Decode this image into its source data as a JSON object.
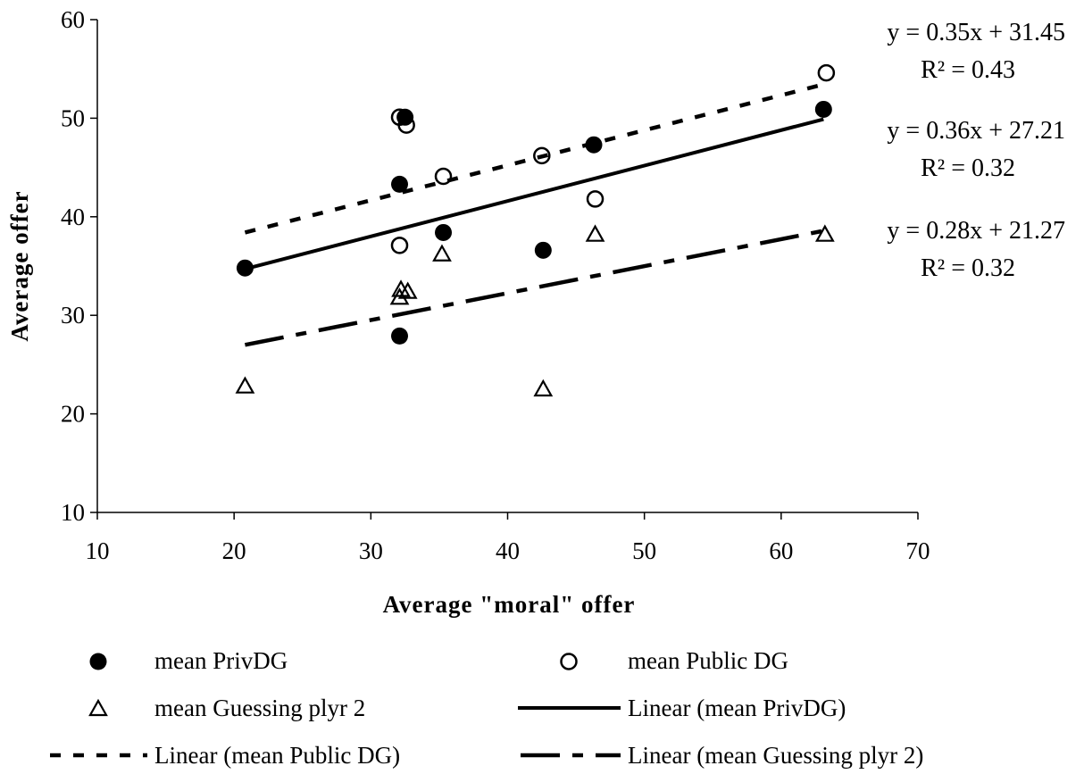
{
  "chart_data": {
    "type": "scatter",
    "xlabel": "Average \"moral\" offer",
    "ylabel": "Average  offer",
    "xlim": [
      10,
      70
    ],
    "ylim": [
      10,
      60
    ],
    "xticks": [
      "10",
      "20",
      "30",
      "40",
      "50",
      "60",
      "70"
    ],
    "yticks": [
      "10",
      "20",
      "30",
      "40",
      "50",
      "60"
    ],
    "grid": false,
    "legend_position": "bottom",
    "series": [
      {
        "name": "mean PrivDG",
        "marker": "filled-circle",
        "points": [
          {
            "x": 20.8,
            "y": 34.8
          },
          {
            "x": 32.1,
            "y": 43.3
          },
          {
            "x": 32.5,
            "y": 50.1
          },
          {
            "x": 32.1,
            "y": 27.9
          },
          {
            "x": 35.3,
            "y": 38.4
          },
          {
            "x": 42.6,
            "y": 36.6
          },
          {
            "x": 46.3,
            "y": 47.3
          },
          {
            "x": 63.1,
            "y": 50.9
          }
        ]
      },
      {
        "name": "mean Public DG",
        "marker": "open-circle",
        "points": [
          {
            "x": 32.1,
            "y": 50.1
          },
          {
            "x": 32.6,
            "y": 49.3
          },
          {
            "x": 32.1,
            "y": 37.1
          },
          {
            "x": 35.3,
            "y": 44.1
          },
          {
            "x": 42.5,
            "y": 46.2
          },
          {
            "x": 46.4,
            "y": 41.8
          },
          {
            "x": 63.3,
            "y": 54.6
          }
        ]
      },
      {
        "name": "mean Guessing plyr 2",
        "marker": "open-triangle",
        "points": [
          {
            "x": 20.8,
            "y": 22.8
          },
          {
            "x": 32.1,
            "y": 31.8
          },
          {
            "x": 32.2,
            "y": 32.6
          },
          {
            "x": 32.7,
            "y": 32.4
          },
          {
            "x": 35.2,
            "y": 36.2
          },
          {
            "x": 42.6,
            "y": 22.5
          },
          {
            "x": 46.4,
            "y": 38.2
          },
          {
            "x": 63.2,
            "y": 38.2
          }
        ]
      }
    ],
    "trendlines": [
      {
        "name": "Linear (mean PrivDG)",
        "style": "solid",
        "x_range": [
          20.8,
          63.1
        ],
        "start_y": 34.7,
        "end_y": 49.9,
        "equation": "y = 0.36x + 27.21",
        "r2": "R² = 0.32"
      },
      {
        "name": "Linear (mean Public DG)",
        "style": "dotted",
        "x_range": [
          20.8,
          63.3
        ],
        "start_y": 38.4,
        "end_y": 53.5,
        "equation": "y = 0.35x + 31.45",
        "r2": "R² = 0.43"
      },
      {
        "name": "Linear (mean Guessing plyr 2)",
        "style": "dash-dot",
        "x_range": [
          20.8,
          63.2
        ],
        "start_y": 27.0,
        "end_y": 38.6,
        "equation": "y = 0.28x + 21.27",
        "r2": "R² = 0.32"
      }
    ]
  },
  "legend": {
    "items": [
      {
        "label": "mean PrivDG",
        "symbol": "filled-circle"
      },
      {
        "label": "mean Public DG",
        "symbol": "open-circle"
      },
      {
        "label": "mean Guessing plyr 2",
        "symbol": "open-triangle"
      },
      {
        "label": "Linear (mean PrivDG)",
        "symbol": "solid-line"
      },
      {
        "label": "Linear (mean Public DG)",
        "symbol": "dotted-line"
      },
      {
        "label": "Linear (mean Guessing plyr 2)",
        "symbol": "dash-dot-line"
      }
    ]
  }
}
